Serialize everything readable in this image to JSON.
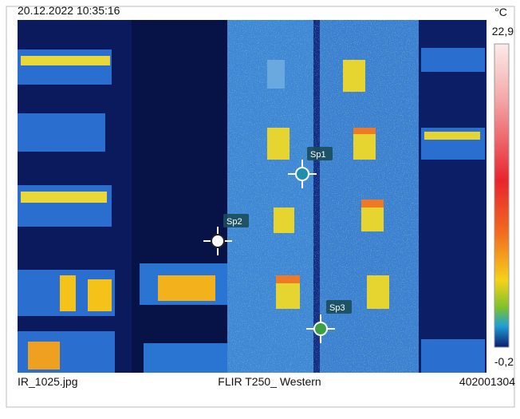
{
  "header": {
    "timestamp": "20.12.2022 10:35:16"
  },
  "scale": {
    "unit": "°C",
    "max": "22,9",
    "min": "-0,2"
  },
  "spots": [
    {
      "label": "Sp1"
    },
    {
      "label": "Sp2"
    },
    {
      "label": "Sp3"
    }
  ],
  "footer": {
    "filename": "IR_1025.jpg",
    "camera": "FLIR T250_ Western",
    "serial": "402001304"
  }
}
